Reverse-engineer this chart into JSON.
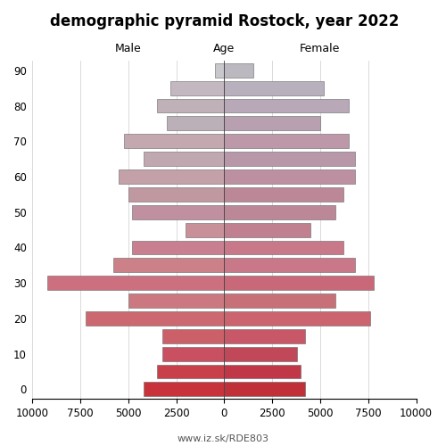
{
  "title": "demographic pyramid Rostock, year 2022",
  "footer": "www.iz.sk/RDE803",
  "age_groups_bottom_up": [
    0,
    5,
    10,
    15,
    20,
    25,
    30,
    35,
    40,
    45,
    50,
    55,
    60,
    65,
    70,
    75,
    80,
    85,
    90
  ],
  "male_values": [
    4200,
    3500,
    3200,
    3200,
    7200,
    5000,
    9200,
    5800,
    4800,
    2000,
    4800,
    5000,
    5500,
    4200,
    5200,
    3000,
    3500,
    2800,
    500
  ],
  "female_values": [
    4200,
    4000,
    3800,
    4200,
    7600,
    5800,
    7800,
    6800,
    6200,
    4500,
    5800,
    6200,
    6800,
    6800,
    6500,
    5000,
    6500,
    5200,
    1500
  ],
  "male_colors": [
    "#c8323a",
    "#c8404a",
    "#c85060",
    "#cc6068",
    "#cc6870",
    "#cc7880",
    "#cc7080",
    "#cc8088",
    "#c88090",
    "#c89098",
    "#c090a0",
    "#c098a0",
    "#c4a0a8",
    "#c0a8b0",
    "#c4a8b0",
    "#bcb0b8",
    "#c0b0b8",
    "#c4b8c0",
    "#c8c8cc"
  ],
  "female_colors": [
    "#c03038",
    "#c03848",
    "#c04858",
    "#c85868",
    "#cc6470",
    "#c87078",
    "#c86878",
    "#c87888",
    "#c87888",
    "#c08090",
    "#bc8898",
    "#bc8898",
    "#bc90a0",
    "#b898a8",
    "#bc98a8",
    "#b8a0b0",
    "#b8a8b8",
    "#b8b0bc",
    "#bcb8c0"
  ],
  "xlim": 10000,
  "xtick_vals": [
    -10000,
    -7500,
    -5000,
    -2500,
    0,
    2500,
    5000,
    7500,
    10000
  ],
  "bar_height": 0.8,
  "figsize": [
    5.0,
    5.0
  ],
  "dpi": 100,
  "title_fontsize": 12,
  "label_fontsize": 9,
  "tick_fontsize": 8.5,
  "footer_fontsize": 8
}
